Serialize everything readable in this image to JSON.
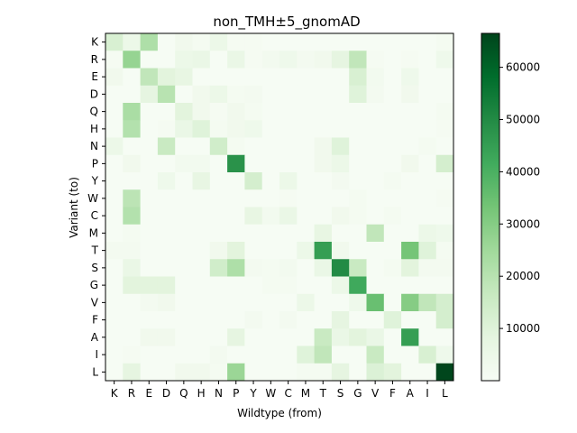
{
  "chart_data": {
    "type": "heatmap",
    "title": "non_TMH±5_gnomAD",
    "xlabel": "Wildtype (from)",
    "ylabel": "Variant (to)",
    "x_categories": [
      "K",
      "R",
      "E",
      "D",
      "Q",
      "H",
      "N",
      "P",
      "Y",
      "W",
      "C",
      "M",
      "T",
      "S",
      "G",
      "V",
      "F",
      "A",
      "I",
      "L"
    ],
    "y_categories": [
      "K",
      "R",
      "E",
      "D",
      "Q",
      "H",
      "N",
      "P",
      "Y",
      "W",
      "C",
      "M",
      "T",
      "S",
      "G",
      "V",
      "F",
      "A",
      "I",
      "L"
    ],
    "values": [
      [
        12000,
        5000,
        22000,
        500,
        3000,
        1500,
        5000,
        1000,
        1000,
        500,
        500,
        500,
        500,
        500,
        500,
        500,
        500,
        500,
        500,
        1500
      ],
      [
        1000,
        27000,
        500,
        500,
        5000,
        6000,
        500,
        6000,
        1000,
        2500,
        4000,
        2000,
        3000,
        8000,
        18000,
        1000,
        500,
        1000,
        500,
        4000
      ],
      [
        3000,
        500,
        18000,
        9000,
        7000,
        500,
        500,
        500,
        500,
        500,
        500,
        500,
        500,
        500,
        12000,
        2500,
        500,
        4000,
        500,
        500
      ],
      [
        500,
        500,
        8000,
        20000,
        500,
        3000,
        5000,
        1500,
        2000,
        500,
        500,
        500,
        500,
        500,
        10000,
        2000,
        500,
        3000,
        500,
        500
      ],
      [
        500,
        23000,
        500,
        500,
        9000,
        3000,
        1000,
        3000,
        1500,
        500,
        500,
        500,
        500,
        500,
        500,
        500,
        500,
        500,
        500,
        1500
      ],
      [
        500,
        21000,
        500,
        1000,
        6000,
        10000,
        1500,
        3000,
        4000,
        500,
        500,
        500,
        500,
        500,
        500,
        500,
        500,
        500,
        500,
        1000
      ],
      [
        5000,
        500,
        500,
        16000,
        500,
        500,
        14000,
        1500,
        500,
        500,
        500,
        500,
        3000,
        10000,
        500,
        500,
        500,
        500,
        1500,
        500
      ],
      [
        500,
        3000,
        500,
        500,
        2500,
        2500,
        500,
        48000,
        500,
        500,
        500,
        500,
        3000,
        5000,
        500,
        500,
        500,
        3000,
        500,
        13000
      ],
      [
        500,
        500,
        500,
        4000,
        500,
        7000,
        500,
        500,
        13000,
        500,
        5000,
        500,
        500,
        2000,
        500,
        500,
        1500,
        500,
        500,
        500
      ],
      [
        500,
        19000,
        500,
        500,
        500,
        500,
        500,
        500,
        500,
        500,
        1000,
        500,
        500,
        500,
        1500,
        500,
        500,
        500,
        500,
        1000
      ],
      [
        500,
        21000,
        500,
        500,
        500,
        500,
        500,
        500,
        7000,
        2500,
        6000,
        500,
        500,
        3000,
        1500,
        500,
        1500,
        500,
        500,
        500
      ],
      [
        500,
        1500,
        500,
        500,
        500,
        500,
        500,
        500,
        500,
        500,
        500,
        500,
        7000,
        500,
        500,
        18000,
        500,
        500,
        5000,
        4000
      ],
      [
        2000,
        2000,
        500,
        500,
        500,
        500,
        3000,
        9000,
        500,
        500,
        500,
        5000,
        45000,
        3000,
        500,
        500,
        500,
        33000,
        10000,
        1500
      ],
      [
        500,
        6000,
        500,
        500,
        500,
        500,
        14000,
        22000,
        2000,
        1500,
        2500,
        500,
        6000,
        50000,
        16000,
        500,
        1500,
        9000,
        2000,
        2000
      ],
      [
        500,
        9000,
        9000,
        9000,
        500,
        500,
        500,
        500,
        500,
        1500,
        1500,
        500,
        500,
        5000,
        42000,
        500,
        500,
        500,
        500,
        500
      ],
      [
        500,
        500,
        2000,
        3000,
        500,
        500,
        500,
        500,
        500,
        500,
        500,
        5000,
        500,
        500,
        4000,
        35000,
        500,
        30000,
        18000,
        13000
      ],
      [
        500,
        500,
        500,
        500,
        500,
        500,
        500,
        500,
        2000,
        500,
        2000,
        500,
        500,
        8000,
        500,
        500,
        10000,
        500,
        500,
        13000
      ],
      [
        500,
        500,
        3000,
        3000,
        500,
        500,
        500,
        8000,
        500,
        500,
        500,
        500,
        16000,
        6000,
        9000,
        6000,
        500,
        45000,
        500,
        500
      ],
      [
        500,
        1000,
        500,
        500,
        500,
        500,
        2000,
        500,
        500,
        500,
        500,
        10000,
        18000,
        500,
        500,
        16000,
        500,
        500,
        12000,
        4000
      ],
      [
        500,
        8000,
        500,
        500,
        3000,
        3000,
        1500,
        26000,
        500,
        500,
        500,
        1500,
        1500,
        8000,
        500,
        11000,
        9000,
        500,
        500,
        66000
      ]
    ],
    "zlim": [
      0,
      66500
    ],
    "colorbar_ticks": [
      10000,
      20000,
      30000,
      40000,
      50000,
      60000
    ],
    "colormap": "Greens",
    "colormap_stops": [
      "#f7fcf5",
      "#e5f5e0",
      "#c7e9c0",
      "#a1d99b",
      "#74c476",
      "#41ab5d",
      "#238b45",
      "#006d2c",
      "#00441b"
    ]
  }
}
